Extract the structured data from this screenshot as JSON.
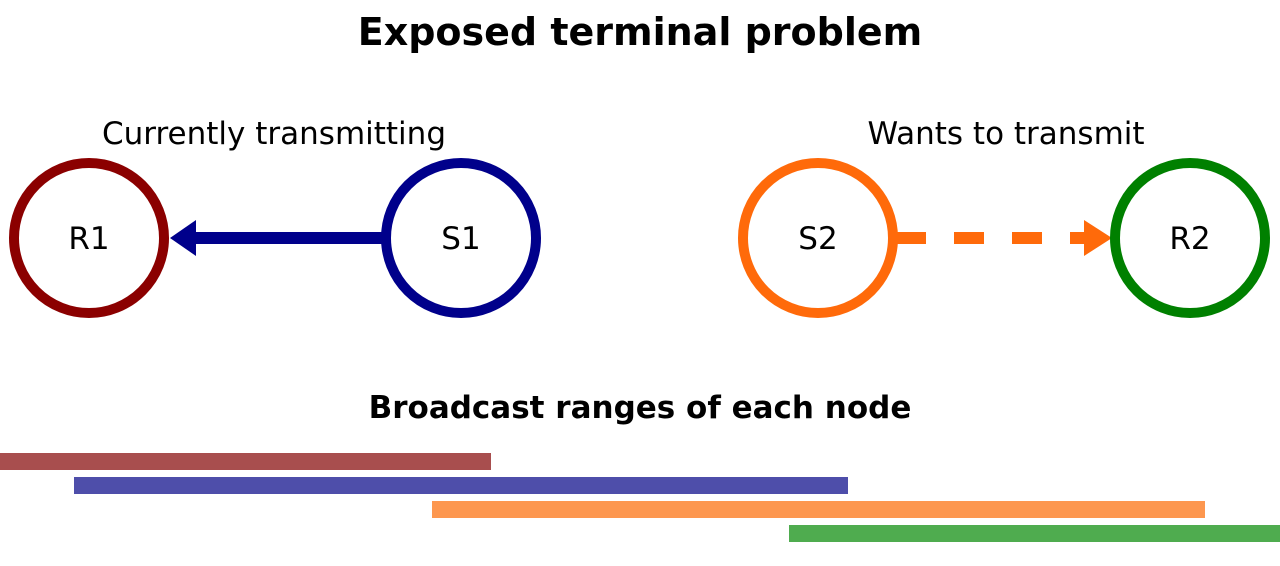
{
  "title": "Exposed terminal problem",
  "labels": {
    "left_group": "Currently transmitting",
    "right_group": "Wants to transmit"
  },
  "nodes": {
    "r1": {
      "label": "R1",
      "color": "#8B0000"
    },
    "s1": {
      "label": "S1",
      "color": "#00008B"
    },
    "s2": {
      "label": "S2",
      "color": "#FF6A0A"
    },
    "r2": {
      "label": "R2",
      "color": "#008000"
    }
  },
  "links": {
    "s1_to_r1": {
      "style": "solid",
      "color": "#00008B"
    },
    "s2_to_r2": {
      "style": "dashed",
      "color": "#FF6A0A"
    }
  },
  "ranges": {
    "heading": "Broadcast ranges of each node",
    "colors": {
      "r1": "#A84E4E",
      "s1": "#4E4EAA",
      "s2": "#FD974F",
      "r2": "#4FAC4F"
    }
  }
}
